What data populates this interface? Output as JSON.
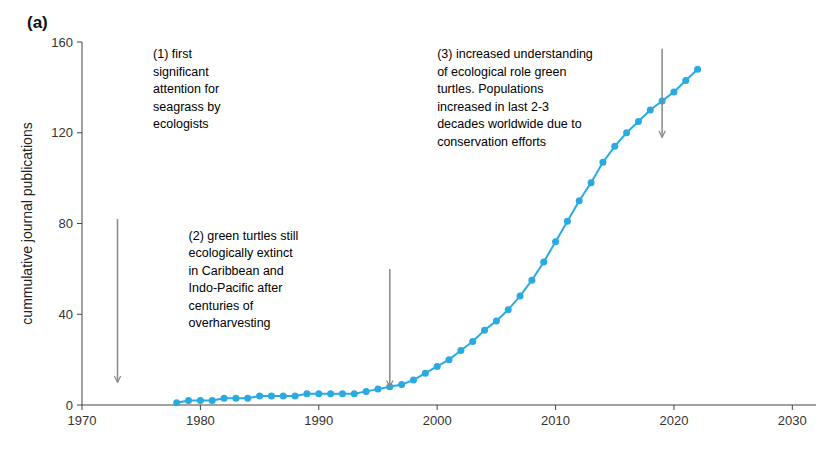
{
  "chart_data": {
    "type": "line",
    "ylabel": "cummulative journal publications",
    "panel_label": "(a)",
    "x": [
      1978,
      1979,
      1980,
      1981,
      1982,
      1983,
      1984,
      1985,
      1986,
      1987,
      1988,
      1989,
      1990,
      1991,
      1992,
      1993,
      1994,
      1995,
      1996,
      1997,
      1998,
      1999,
      2000,
      2001,
      2002,
      2003,
      2004,
      2005,
      2006,
      2007,
      2008,
      2009,
      2010,
      2011,
      2012,
      2013,
      2014,
      2015,
      2016,
      2017,
      2018,
      2019,
      2020,
      2021,
      2022
    ],
    "values": [
      1,
      2,
      2,
      2,
      3,
      3,
      3,
      4,
      4,
      4,
      4,
      5,
      5,
      5,
      5,
      5,
      6,
      7,
      8,
      9,
      11,
      14,
      17,
      20,
      24,
      28,
      33,
      37,
      42,
      48,
      55,
      63,
      72,
      81,
      90,
      98,
      107,
      114,
      120,
      125,
      130,
      134,
      138,
      143,
      148
    ],
    "color": "#29ABE2",
    "marker": "circle",
    "xlim": [
      1970,
      2032
    ],
    "ylim": [
      0,
      160
    ],
    "xticks": [
      1970,
      1980,
      1990,
      2000,
      2010,
      2020,
      2030
    ],
    "yticks": [
      0,
      40,
      80,
      120,
      160
    ],
    "grid": false,
    "annotations": [
      {
        "text": "(1) first\nsignificant\nattention for\nseagrass by\necologists",
        "x": 1973,
        "y": 10,
        "arrow_from": 82,
        "text_x": 1976,
        "text_y": 158
      },
      {
        "text": "(2) green turtles still\necologically extinct\nin Caribbean and\nIndo-Pacific after\ncenturies of\noverharvesting",
        "x": 1996,
        "y": 8,
        "arrow_from": 60,
        "text_x": 1979,
        "text_y": 78
      },
      {
        "text": "(3) increased understanding\nof ecological role green\nturtles. Populations\nincreased in last 2-3\ndecades worldwide due to\nconservation efforts",
        "x": 2019,
        "y": 118,
        "arrow_from": 157,
        "text_x": 2000,
        "text_y": 158
      }
    ]
  }
}
